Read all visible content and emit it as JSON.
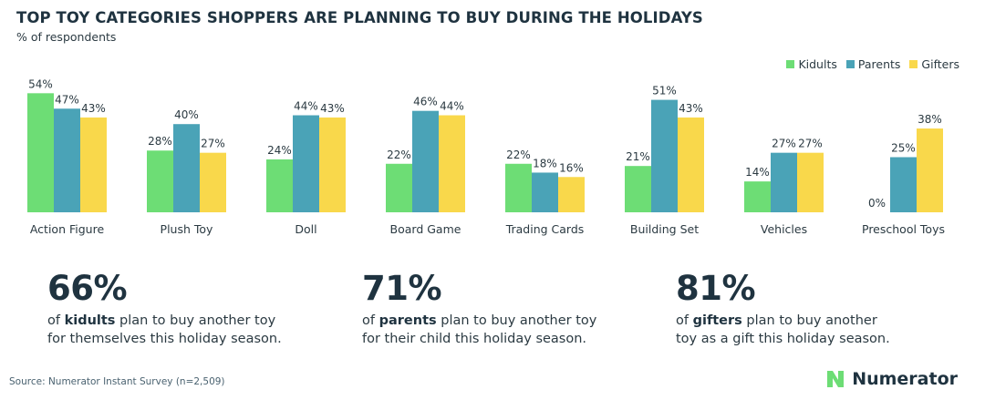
{
  "title": "TOP TOY CATEGORIES SHOPPERS ARE PLANNING TO BUY DURING THE HOLIDAYS",
  "subtitle": "% of respondents",
  "colors": {
    "kidults": "#6ddd75",
    "parents": "#4aa3b7",
    "gifters": "#f9d84b",
    "text": "#1f3340"
  },
  "chart_data": {
    "type": "bar",
    "title": "TOP TOY CATEGORIES SHOPPERS ARE PLANNING TO BUY DURING THE HOLIDAYS",
    "ylabel": "% of respondents",
    "ylim": [
      0,
      54
    ],
    "grid": false,
    "legend_position": "top-right",
    "categories": [
      "Action Figure",
      "Plush Toy",
      "Doll",
      "Board Game",
      "Trading Cards",
      "Building Set",
      "Vehicles",
      "Preschool Toys"
    ],
    "series": [
      {
        "name": "Kidults",
        "values": [
          54,
          28,
          24,
          22,
          22,
          21,
          14,
          0
        ],
        "labels": [
          "54%",
          "28%",
          "24%",
          "22%",
          "22%",
          "21%",
          "14%",
          "0%"
        ]
      },
      {
        "name": "Parents",
        "values": [
          47,
          40,
          44,
          46,
          18,
          51,
          27,
          25
        ],
        "labels": [
          "47%",
          "40%",
          "44%",
          "46%",
          "18%",
          "51%",
          "27%",
          "25%"
        ]
      },
      {
        "name": "Gifters",
        "values": [
          43,
          27,
          43,
          44,
          16,
          43,
          27,
          38
        ],
        "labels": [
          "43%",
          "27%",
          "43%",
          "44%",
          "16%",
          "43%",
          "27%",
          "38%"
        ]
      }
    ]
  },
  "stats": [
    {
      "value": "66%",
      "pre": "of ",
      "bold": "kidults",
      "post": " plan to buy another toy",
      "line2": "for themselves this holiday season."
    },
    {
      "value": "71%",
      "pre": "of ",
      "bold": "parents",
      "post": " plan to buy another toy",
      "line2": "for their child this holiday season."
    },
    {
      "value": "81%",
      "pre": "of ",
      "bold": "gifters",
      "post": " plan to buy another",
      "line2": "toy as a gift this holiday season."
    }
  ],
  "source": "Source: Numerator Instant Survey (n=2,509)",
  "logo": {
    "text": "Numerator",
    "icon": "numerator-n-icon"
  }
}
